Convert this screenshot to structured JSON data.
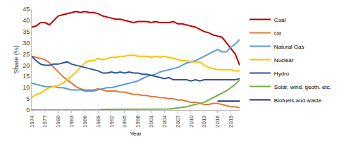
{
  "chart_data": {
    "type": "line",
    "x_label": "Year",
    "y_label": "Share (%)",
    "x": [
      1974,
      1975,
      1976,
      1977,
      1978,
      1979,
      1980,
      1981,
      1982,
      1983,
      1984,
      1985,
      1986,
      1987,
      1988,
      1989,
      1990,
      1991,
      1992,
      1993,
      1994,
      1995,
      1996,
      1997,
      1998,
      1999,
      2000,
      2001,
      2002,
      2003,
      2004,
      2005,
      2006,
      2007,
      2008,
      2009,
      2010,
      2011,
      2012,
      2013,
      2014,
      2015,
      2016,
      2017,
      2018,
      2019,
      2020,
      2021
    ],
    "xlim": [
      1974,
      2021
    ],
    "xticks": [
      1974,
      1977,
      1980,
      1983,
      1986,
      1989,
      1992,
      1995,
      1998,
      2001,
      2004,
      2007,
      2010,
      2013,
      2016,
      2019
    ],
    "ylim": [
      0,
      45
    ],
    "yticks": [
      0,
      5,
      10,
      15,
      20,
      25,
      30,
      35,
      40,
      45
    ],
    "grid": false,
    "legend": "right",
    "series": [
      {
        "name": "Coal",
        "color": "#c00000",
        "values": [
          37,
          37.5,
          39,
          39,
          38,
          40,
          42,
          42.5,
          43,
          43.5,
          44,
          43.5,
          44,
          43.5,
          43.5,
          43,
          42,
          41.5,
          41,
          40.5,
          40.5,
          40,
          39.5,
          39,
          39.5,
          39.5,
          39.5,
          39,
          39.5,
          39,
          39,
          39,
          39.5,
          38.5,
          38.5,
          38,
          37.5,
          37,
          36,
          35,
          34.5,
          33.5,
          33,
          32.5,
          30,
          27.5,
          25,
          20
        ]
      },
      {
        "name": "Oil",
        "color": "#e07b39",
        "values": [
          24,
          23.5,
          23,
          22.5,
          21,
          19,
          17,
          15,
          13.5,
          12,
          10.5,
          9.5,
          9,
          9,
          9,
          9.5,
          9,
          8.5,
          8.5,
          8.5,
          8,
          8,
          7.5,
          7,
          7,
          6.5,
          6.5,
          6,
          6,
          5.5,
          5.5,
          5,
          5,
          4.5,
          4.5,
          4,
          3.5,
          3.5,
          3,
          2.5,
          2.5,
          3,
          3,
          2.5,
          2,
          1.5,
          1.5,
          1
        ]
      },
      {
        "name": "Natural Gas",
        "color": "#5b9bd5",
        "values": [
          12,
          11.5,
          11,
          10.5,
          10.5,
          10.5,
          10,
          10,
          9.5,
          9,
          9,
          9,
          8.5,
          8.5,
          8.5,
          9,
          9.5,
          10,
          10,
          10.5,
          11,
          11.5,
          12,
          12.5,
          13,
          14,
          15,
          15.5,
          16,
          17,
          17.5,
          18,
          18.5,
          19,
          20,
          21,
          21.5,
          22,
          23,
          24,
          25,
          26,
          27,
          26,
          26,
          28,
          29.5,
          31.5
        ]
      },
      {
        "name": "Nuclear",
        "color": "#ffc000",
        "values": [
          5.5,
          7,
          7.5,
          9,
          10,
          10.5,
          11,
          12,
          13.5,
          15,
          17,
          19,
          21,
          22,
          22,
          23,
          22.5,
          23,
          23.5,
          23.5,
          24,
          24,
          24.5,
          24.5,
          24,
          24,
          24,
          23.5,
          24,
          23.5,
          24,
          23.5,
          23,
          22.5,
          22,
          22,
          21.5,
          21.5,
          21.5,
          20,
          19,
          18.5,
          18,
          18,
          18,
          18,
          17.5,
          17.5
        ]
      },
      {
        "name": "Hydro",
        "color": "#2f5597",
        "values": [
          24,
          22,
          20.5,
          20,
          20,
          20.5,
          20.5,
          21,
          21.5,
          20.5,
          20,
          19.5,
          19,
          18.5,
          18,
          17.5,
          16.5,
          16.5,
          17,
          16.5,
          17,
          16.5,
          17,
          16.5,
          16.5,
          16,
          16,
          15.5,
          15,
          14.5,
          14,
          14.5,
          13.5,
          13.5,
          13.5,
          13.5,
          13,
          13.5,
          13,
          13.5,
          13.5,
          13.5,
          13.5,
          13.5,
          13.5,
          13.5,
          13.5,
          14
        ]
      },
      {
        "name": "Solar, wind, geoth. etc.",
        "color": "#70ad47",
        "values": [
          0,
          0,
          0,
          0,
          0,
          0,
          0,
          0,
          0,
          0,
          0,
          0,
          0,
          0,
          0,
          0,
          0.3,
          0.3,
          0.3,
          0.3,
          0.3,
          0.3,
          0.3,
          0.3,
          0.3,
          0.3,
          0.3,
          0.5,
          0.5,
          0.5,
          0.5,
          0.5,
          0.7,
          0.9,
          1.2,
          1.5,
          2,
          2.5,
          3,
          3.5,
          4.5,
          5.5,
          6.5,
          7.5,
          8.5,
          10,
          11.5,
          13.5
        ]
      },
      {
        "name": "Biofuels and waste",
        "color": "#1f3864",
        "values": [
          null,
          null,
          null,
          null,
          null,
          null,
          null,
          null,
          null,
          null,
          null,
          null,
          null,
          null,
          null,
          null,
          null,
          null,
          null,
          null,
          null,
          null,
          null,
          null,
          null,
          null,
          null,
          null,
          null,
          null,
          null,
          null,
          null,
          null,
          null,
          null,
          null,
          null,
          null,
          null,
          null,
          null,
          4,
          4,
          4,
          4,
          4,
          4
        ]
      }
    ]
  }
}
